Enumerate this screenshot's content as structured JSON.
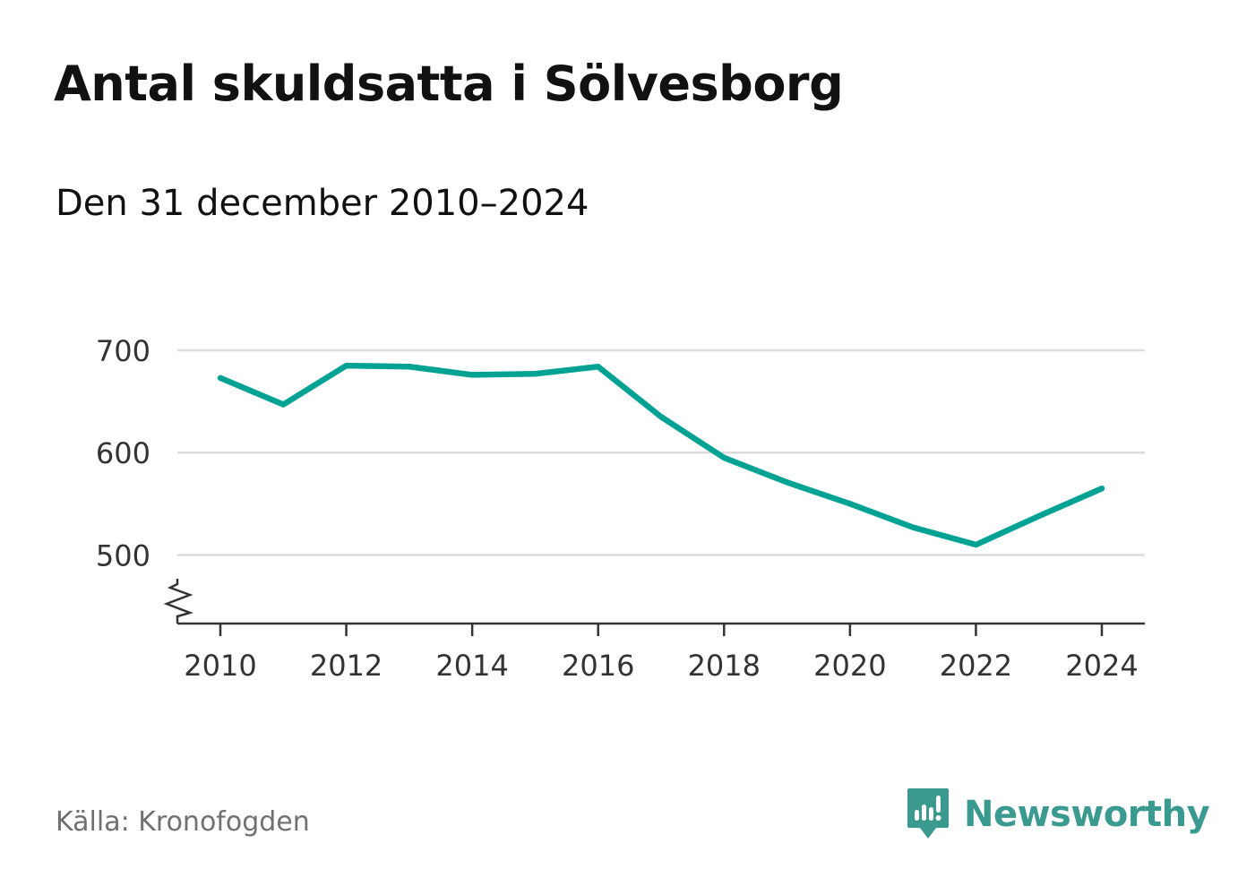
{
  "header": {
    "title": "Antal skuldsatta i Sölvesborg",
    "subtitle": "Den 31 december 2010–2024"
  },
  "footer": {
    "source": "Källa: Kronofogden",
    "brand": "Newsworthy"
  },
  "colors": {
    "line": "#00a294",
    "grid": "#dcdcdc",
    "axis": "#333333",
    "brand": "#3a9a90"
  },
  "chart_data": {
    "type": "line",
    "title": "Antal skuldsatta i Sölvesborg",
    "subtitle": "Den 31 december 2010–2024",
    "xlabel": "",
    "ylabel": "",
    "x": [
      2010,
      2011,
      2012,
      2013,
      2014,
      2015,
      2016,
      2017,
      2018,
      2019,
      2020,
      2021,
      2022,
      2023,
      2024
    ],
    "series": [
      {
        "name": "Antal skuldsatta",
        "values": [
          673,
          647,
          685,
          684,
          676,
          677,
          684,
          635,
          595,
          571,
          550,
          527,
          510,
          538,
          565
        ]
      }
    ],
    "x_ticks": [
      "2010",
      "2012",
      "2014",
      "2016",
      "2018",
      "2020",
      "2022",
      "2024"
    ],
    "y_ticks": [
      "500",
      "600",
      "700"
    ],
    "ylim": [
      433,
      700
    ],
    "y_axis_break": true,
    "grid": true,
    "legend": "none"
  }
}
